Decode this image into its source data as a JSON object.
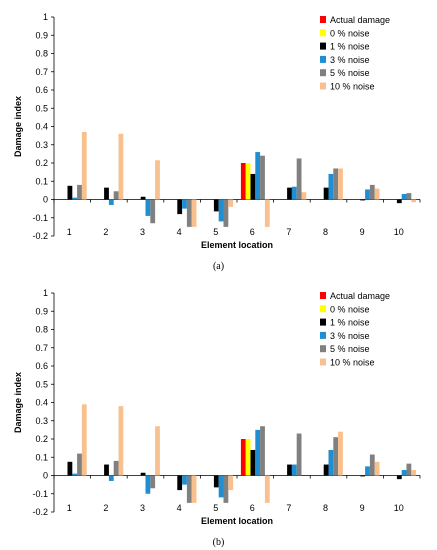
{
  "chart_data": [
    {
      "type": "bar",
      "xlabel": "Element location",
      "ylabel": "Damage index",
      "ylim": [
        -0.2,
        1
      ],
      "yticks": [
        "1",
        "0.9",
        "0.8",
        "0.7",
        "0.6",
        "0.5",
        "0.4",
        "0.3",
        "0.2",
        "0.1",
        "0",
        "-0.1",
        "-0.2"
      ],
      "categories": [
        "1",
        "2",
        "3",
        "4",
        "5",
        "6",
        "7",
        "8",
        "9",
        "10"
      ],
      "legend_position": "top-right",
      "grid": false,
      "series": [
        {
          "name": "Actual damage",
          "color": "#ff0000",
          "values": [
            0,
            0,
            0,
            0,
            0,
            0.2,
            0,
            0,
            0,
            0
          ]
        },
        {
          "name": "0 % noise",
          "color": "#ffff00",
          "values": [
            0,
            0,
            0,
            0,
            0,
            0.2,
            0,
            0,
            0,
            0
          ]
        },
        {
          "name": "1 % noise",
          "color": "#000000",
          "values": [
            0.075,
            0.065,
            0.015,
            -0.08,
            -0.065,
            0.14,
            0.065,
            0.065,
            -0.005,
            -0.02
          ]
        },
        {
          "name": "3 % noise",
          "color": "#1f8fd2",
          "values": [
            0.01,
            -0.03,
            -0.09,
            -0.05,
            -0.12,
            0.26,
            0.07,
            0.14,
            0.055,
            0.03
          ]
        },
        {
          "name": "5 % noise",
          "color": "#808080",
          "values": [
            0.08,
            0.045,
            -0.13,
            -0.15,
            -0.15,
            0.24,
            0.225,
            0.17,
            0.08,
            0.035
          ]
        },
        {
          "name": "10 % noise",
          "color": "#f9c08f",
          "values": [
            0.37,
            0.36,
            0.215,
            -0.15,
            -0.04,
            -0.15,
            0.04,
            0.17,
            0.06,
            -0.015
          ]
        }
      ],
      "caption": "(a)"
    },
    {
      "type": "bar",
      "xlabel": "Element location",
      "ylabel": "Damage index",
      "ylim": [
        -0.2,
        1
      ],
      "yticks": [
        "1",
        "0.9",
        "0.8",
        "0.7",
        "0.6",
        "0.5",
        "0.4",
        "0.3",
        "0.2",
        "0.1",
        "0",
        "-0.1",
        "-0.2"
      ],
      "categories": [
        "1",
        "2",
        "3",
        "4",
        "5",
        "6",
        "7",
        "8",
        "9",
        "10"
      ],
      "legend_position": "top-right",
      "grid": false,
      "series": [
        {
          "name": "Actual damage",
          "color": "#ff0000",
          "values": [
            0,
            0,
            0,
            0,
            0,
            0.2,
            0,
            0,
            0,
            0
          ]
        },
        {
          "name": "0 % noise",
          "color": "#ffff00",
          "values": [
            0,
            0,
            0,
            0,
            0,
            0.2,
            0,
            0,
            0,
            0
          ]
        },
        {
          "name": "1 % noise",
          "color": "#000000",
          "values": [
            0.075,
            0.06,
            0.015,
            -0.08,
            -0.065,
            0.14,
            0.06,
            0.06,
            -0.005,
            -0.02
          ]
        },
        {
          "name": "3 % noise",
          "color": "#1f8fd2",
          "values": [
            0.01,
            -0.03,
            -0.1,
            -0.05,
            -0.12,
            0.25,
            0.06,
            0.14,
            0.05,
            0.03
          ]
        },
        {
          "name": "5 % noise",
          "color": "#808080",
          "values": [
            0.12,
            0.08,
            -0.07,
            -0.15,
            -0.15,
            0.27,
            0.23,
            0.21,
            0.115,
            0.065
          ]
        },
        {
          "name": "10 % noise",
          "color": "#f9c08f",
          "values": [
            0.39,
            0.38,
            0.27,
            -0.15,
            -0.08,
            -0.15,
            0.0,
            0.24,
            0.075,
            0.03
          ]
        }
      ],
      "caption": "(b)"
    }
  ]
}
